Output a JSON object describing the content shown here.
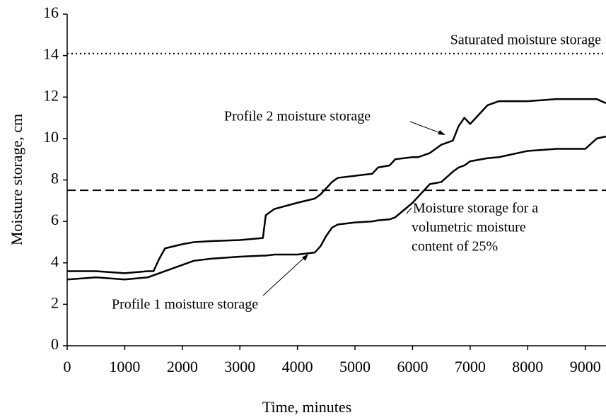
{
  "chart_data": {
    "type": "line",
    "x_label": "Time, minutes",
    "y_label": "Moisture storage, cm",
    "x": [
      0,
      500,
      1000,
      1400,
      1500,
      1600,
      1700,
      2000,
      2200,
      2500,
      3000,
      3400,
      3450,
      3600,
      4000,
      4300,
      4400,
      4500,
      4600,
      4700,
      5000,
      5300,
      5400,
      5600,
      5700,
      6000,
      6100,
      6300,
      6500,
      6700,
      6800,
      6900,
      7000,
      7300,
      7500,
      8000,
      8500,
      9000,
      9200,
      9360
    ],
    "series": [
      {
        "name": "Profile 2 moisture storage",
        "color": "#000000",
        "values": [
          3.6,
          3.6,
          3.5,
          3.6,
          3.6,
          4.2,
          4.7,
          4.9,
          5.0,
          5.05,
          5.1,
          5.2,
          6.3,
          6.6,
          6.9,
          7.1,
          7.3,
          7.6,
          7.9,
          8.1,
          8.2,
          8.3,
          8.6,
          8.7,
          9.0,
          9.1,
          9.1,
          9.3,
          9.7,
          9.9,
          10.6,
          11.0,
          10.7,
          11.6,
          11.8,
          11.8,
          11.9,
          11.9,
          11.9,
          11.7
        ]
      },
      {
        "name": "Profile 1 moisture storage",
        "color": "#000000",
        "values": [
          3.2,
          3.3,
          3.2,
          3.3,
          3.4,
          3.5,
          3.6,
          3.9,
          4.1,
          4.2,
          4.3,
          4.35,
          4.35,
          4.4,
          4.4,
          4.5,
          4.8,
          5.3,
          5.7,
          5.85,
          5.95,
          6.0,
          6.05,
          6.1,
          6.2,
          6.9,
          7.2,
          7.8,
          7.9,
          8.4,
          8.6,
          8.7,
          8.9,
          9.05,
          9.1,
          9.4,
          9.5,
          9.5,
          10.0,
          10.1
        ]
      }
    ],
    "reference_lines": [
      {
        "name": "Saturated moisture storage",
        "value": 14.1,
        "style": "dotted"
      },
      {
        "lines": [
          "Moisture storage for a",
          "volumetric moisture",
          "content of 25%"
        ],
        "value": 7.5,
        "style": "dashed"
      }
    ],
    "xlim": [
      0,
      9360
    ],
    "ylim": [
      0,
      16
    ],
    "xticks": [
      0,
      1000,
      2000,
      3000,
      4000,
      5000,
      6000,
      7000,
      8000,
      9000
    ],
    "yticks": [
      0,
      2,
      4,
      6,
      8,
      10,
      12,
      14,
      16
    ]
  }
}
